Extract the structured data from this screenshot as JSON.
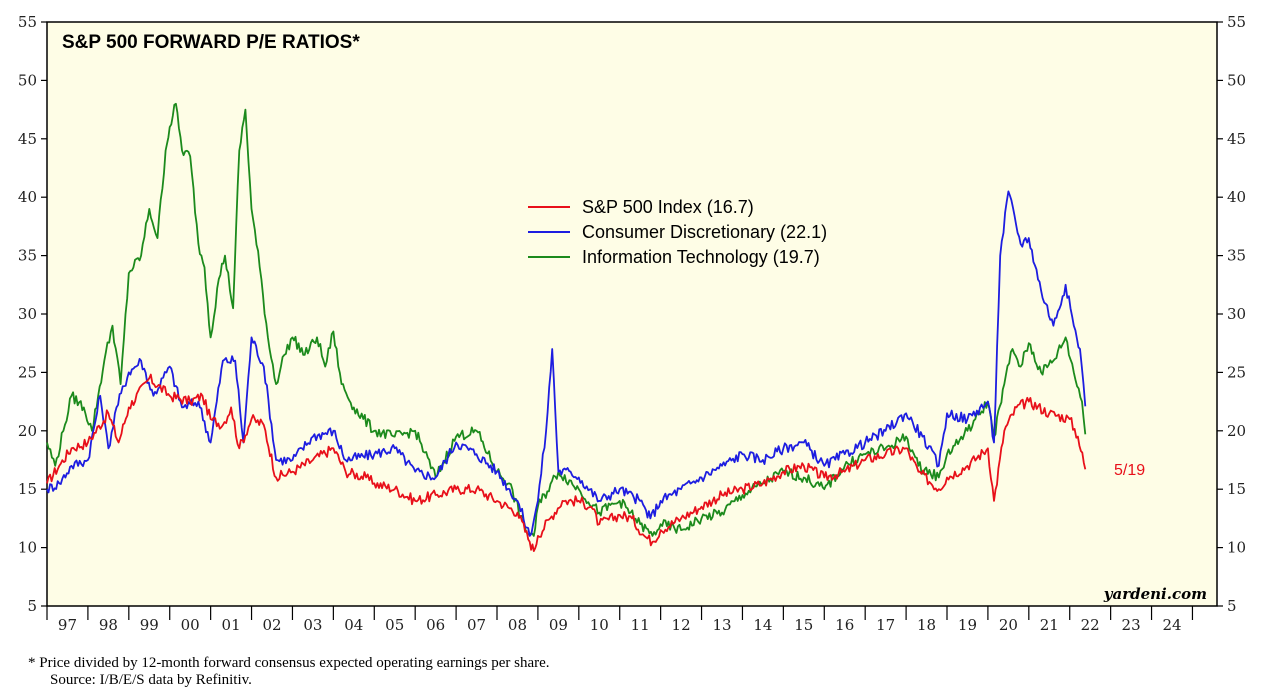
{
  "chart_data": {
    "type": "line",
    "title": "S&P 500 FORWARD P/E RATIOS*",
    "ylim": [
      5,
      55
    ],
    "yticks": [
      5,
      10,
      15,
      20,
      25,
      30,
      35,
      40,
      45,
      50,
      55
    ],
    "x_range": [
      1997,
      2025
    ],
    "x_tick_labels": [
      "97",
      "98",
      "99",
      "00",
      "01",
      "02",
      "03",
      "04",
      "05",
      "06",
      "07",
      "08",
      "09",
      "10",
      "11",
      "12",
      "13",
      "14",
      "15",
      "16",
      "17",
      "18",
      "19",
      "20",
      "21",
      "22",
      "23",
      "24"
    ],
    "series": [
      {
        "name": "S&P 500 Index (16.7)",
        "color": "#e8101a",
        "points": [
          [
            1997.0,
            15.5
          ],
          [
            1997.3,
            17.0
          ],
          [
            1997.6,
            18.5
          ],
          [
            1998.0,
            19.0
          ],
          [
            1998.5,
            21.5
          ],
          [
            1998.75,
            19.0
          ],
          [
            1999.0,
            22.0
          ],
          [
            1999.5,
            24.5
          ],
          [
            2000.0,
            23.0
          ],
          [
            2000.5,
            22.5
          ],
          [
            2000.8,
            23.0
          ],
          [
            2001.0,
            21.0
          ],
          [
            2001.3,
            20.5
          ],
          [
            2001.5,
            22.0
          ],
          [
            2001.7,
            18.5
          ],
          [
            2002.0,
            21.0
          ],
          [
            2002.3,
            20.5
          ],
          [
            2002.6,
            16.0
          ],
          [
            2003.0,
            16.5
          ],
          [
            2003.5,
            17.5
          ],
          [
            2004.0,
            18.5
          ],
          [
            2004.3,
            16.5
          ],
          [
            2004.8,
            16.0
          ],
          [
            2005.0,
            15.5
          ],
          [
            2005.5,
            15.0
          ],
          [
            2006.0,
            14.0
          ],
          [
            2006.5,
            14.5
          ],
          [
            2007.0,
            15.0
          ],
          [
            2007.5,
            15.0
          ],
          [
            2008.0,
            14.0
          ],
          [
            2008.5,
            13.0
          ],
          [
            2008.8,
            10.5
          ],
          [
            2008.9,
            9.7
          ],
          [
            2009.0,
            11.0
          ],
          [
            2009.3,
            12.5
          ],
          [
            2009.6,
            14.0
          ],
          [
            2010.0,
            14.0
          ],
          [
            2010.3,
            13.5
          ],
          [
            2010.5,
            12.0
          ],
          [
            2011.0,
            12.8
          ],
          [
            2011.3,
            12.5
          ],
          [
            2011.6,
            11.0
          ],
          [
            2011.8,
            10.5
          ],
          [
            2012.0,
            11.5
          ],
          [
            2012.5,
            12.5
          ],
          [
            2013.0,
            13.5
          ],
          [
            2013.5,
            14.5
          ],
          [
            2014.0,
            15.0
          ],
          [
            2014.5,
            15.5
          ],
          [
            2015.0,
            16.5
          ],
          [
            2015.5,
            17.0
          ],
          [
            2016.0,
            16.0
          ],
          [
            2016.5,
            16.5
          ],
          [
            2017.0,
            17.5
          ],
          [
            2017.5,
            18.0
          ],
          [
            2018.0,
            18.5
          ],
          [
            2018.3,
            16.5
          ],
          [
            2018.8,
            15.0
          ],
          [
            2019.0,
            16.0
          ],
          [
            2019.5,
            17.0
          ],
          [
            2020.0,
            18.5
          ],
          [
            2020.15,
            14.0
          ],
          [
            2020.4,
            20.0
          ],
          [
            2020.7,
            22.0
          ],
          [
            2021.0,
            22.5
          ],
          [
            2021.5,
            21.5
          ],
          [
            2022.0,
            21.0
          ],
          [
            2022.2,
            19.5
          ],
          [
            2022.38,
            16.7
          ]
        ]
      },
      {
        "name": "Consumer Discretionary (22.1)",
        "color": "#1d1de0",
        "points": [
          [
            1997.0,
            15.0
          ],
          [
            1997.3,
            15.5
          ],
          [
            1997.6,
            17.0
          ],
          [
            1998.0,
            17.5
          ],
          [
            1998.3,
            23.0
          ],
          [
            1998.5,
            18.5
          ],
          [
            1998.7,
            22.0
          ],
          [
            1999.0,
            25.0
          ],
          [
            1999.3,
            26.0
          ],
          [
            1999.6,
            23.0
          ],
          [
            2000.0,
            25.5
          ],
          [
            2000.3,
            22.0
          ],
          [
            2000.7,
            22.5
          ],
          [
            2001.0,
            19.0
          ],
          [
            2001.3,
            26.0
          ],
          [
            2001.6,
            26.0
          ],
          [
            2001.8,
            19.0
          ],
          [
            2002.0,
            28.0
          ],
          [
            2002.3,
            25.5
          ],
          [
            2002.6,
            17.5
          ],
          [
            2003.0,
            17.5
          ],
          [
            2003.5,
            19.5
          ],
          [
            2004.0,
            20.0
          ],
          [
            2004.3,
            17.5
          ],
          [
            2005.0,
            18.0
          ],
          [
            2005.5,
            18.5
          ],
          [
            2006.0,
            16.5
          ],
          [
            2006.5,
            16.0
          ],
          [
            2007.0,
            19.0
          ],
          [
            2007.5,
            18.0
          ],
          [
            2008.0,
            16.5
          ],
          [
            2008.5,
            14.0
          ],
          [
            2008.8,
            11.0
          ],
          [
            2009.0,
            14.0
          ],
          [
            2009.2,
            20.0
          ],
          [
            2009.35,
            27.0
          ],
          [
            2009.5,
            16.5
          ],
          [
            2009.8,
            16.5
          ],
          [
            2010.0,
            16.0
          ],
          [
            2010.5,
            14.0
          ],
          [
            2011.0,
            15.0
          ],
          [
            2011.5,
            14.0
          ],
          [
            2011.75,
            12.5
          ],
          [
            2012.0,
            14.0
          ],
          [
            2012.5,
            15.0
          ],
          [
            2013.0,
            16.0
          ],
          [
            2013.5,
            17.0
          ],
          [
            2014.0,
            18.0
          ],
          [
            2014.5,
            17.5
          ],
          [
            2015.0,
            18.5
          ],
          [
            2015.5,
            19.0
          ],
          [
            2016.0,
            17.0
          ],
          [
            2016.5,
            18.0
          ],
          [
            2017.0,
            19.0
          ],
          [
            2017.5,
            20.0
          ],
          [
            2018.0,
            21.5
          ],
          [
            2018.4,
            19.5
          ],
          [
            2018.8,
            17.0
          ],
          [
            2019.0,
            21.5
          ],
          [
            2019.5,
            21.0
          ],
          [
            2020.0,
            22.5
          ],
          [
            2020.15,
            19.0
          ],
          [
            2020.3,
            35.0
          ],
          [
            2020.5,
            40.5
          ],
          [
            2020.8,
            36.0
          ],
          [
            2021.0,
            36.5
          ],
          [
            2021.3,
            32.0
          ],
          [
            2021.6,
            29.0
          ],
          [
            2021.9,
            32.5
          ],
          [
            2022.1,
            29.0
          ],
          [
            2022.25,
            27.0
          ],
          [
            2022.38,
            22.1
          ]
        ]
      },
      {
        "name": "Information Technology (19.7)",
        "color": "#1c8a1c",
        "points": [
          [
            1997.0,
            19.0
          ],
          [
            1997.2,
            17.0
          ],
          [
            1997.4,
            20.0
          ],
          [
            1997.6,
            23.0
          ],
          [
            1997.9,
            22.0
          ],
          [
            1998.1,
            20.0
          ],
          [
            1998.4,
            26.0
          ],
          [
            1998.6,
            29.0
          ],
          [
            1998.8,
            24.0
          ],
          [
            1999.0,
            33.5
          ],
          [
            1999.3,
            35.0
          ],
          [
            1999.5,
            39.0
          ],
          [
            1999.7,
            36.5
          ],
          [
            1999.9,
            44.0
          ],
          [
            2000.0,
            46.0
          ],
          [
            2000.15,
            48.0
          ],
          [
            2000.3,
            44.0
          ],
          [
            2000.5,
            43.5
          ],
          [
            2000.7,
            36.0
          ],
          [
            2000.85,
            34.0
          ],
          [
            2001.0,
            28.0
          ],
          [
            2001.2,
            33.0
          ],
          [
            2001.35,
            35.0
          ],
          [
            2001.55,
            30.5
          ],
          [
            2001.7,
            44.0
          ],
          [
            2001.85,
            47.5
          ],
          [
            2002.0,
            39.0
          ],
          [
            2002.2,
            34.0
          ],
          [
            2002.4,
            28.0
          ],
          [
            2002.6,
            24.0
          ],
          [
            2002.8,
            26.5
          ],
          [
            2003.0,
            28.0
          ],
          [
            2003.3,
            26.5
          ],
          [
            2003.6,
            28.0
          ],
          [
            2003.8,
            25.5
          ],
          [
            2004.0,
            28.5
          ],
          [
            2004.2,
            24.0
          ],
          [
            2004.5,
            22.0
          ],
          [
            2005.0,
            20.0
          ],
          [
            2005.5,
            19.5
          ],
          [
            2006.0,
            20.0
          ],
          [
            2006.5,
            16.0
          ],
          [
            2007.0,
            19.5
          ],
          [
            2007.5,
            20.0
          ],
          [
            2008.0,
            16.5
          ],
          [
            2008.3,
            15.5
          ],
          [
            2008.7,
            11.5
          ],
          [
            2008.9,
            11.0
          ],
          [
            2009.0,
            13.5
          ],
          [
            2009.5,
            16.5
          ],
          [
            2010.0,
            15.0
          ],
          [
            2010.5,
            13.0
          ],
          [
            2011.0,
            14.0
          ],
          [
            2011.5,
            12.0
          ],
          [
            2011.8,
            11.0
          ],
          [
            2012.0,
            12.0
          ],
          [
            2012.5,
            11.5
          ],
          [
            2013.0,
            12.5
          ],
          [
            2013.5,
            13.0
          ],
          [
            2014.0,
            14.5
          ],
          [
            2014.5,
            15.5
          ],
          [
            2015.0,
            16.5
          ],
          [
            2015.5,
            16.0
          ],
          [
            2016.0,
            15.0
          ],
          [
            2016.5,
            17.0
          ],
          [
            2017.0,
            18.0
          ],
          [
            2017.5,
            18.5
          ],
          [
            2018.0,
            19.5
          ],
          [
            2018.3,
            17.0
          ],
          [
            2018.8,
            16.0
          ],
          [
            2019.0,
            18.0
          ],
          [
            2019.5,
            20.0
          ],
          [
            2020.0,
            22.5
          ],
          [
            2020.15,
            19.5
          ],
          [
            2020.4,
            24.0
          ],
          [
            2020.6,
            27.0
          ],
          [
            2020.8,
            25.5
          ],
          [
            2021.0,
            27.5
          ],
          [
            2021.3,
            25.0
          ],
          [
            2021.6,
            26.0
          ],
          [
            2021.9,
            28.0
          ],
          [
            2022.1,
            25.0
          ],
          [
            2022.3,
            22.5
          ],
          [
            2022.38,
            19.7
          ]
        ]
      }
    ],
    "end_label": "5/19",
    "end_label_color": "#e8101a",
    "legend_position": "top-center",
    "grid": false,
    "background_color": "#fefde6",
    "brand": "yardeni.com"
  },
  "footnote": {
    "line1": "*  Price divided by 12-month forward consensus expected operating earnings per share.",
    "line2": "Source: I/B/E/S data by Refinitiv."
  }
}
